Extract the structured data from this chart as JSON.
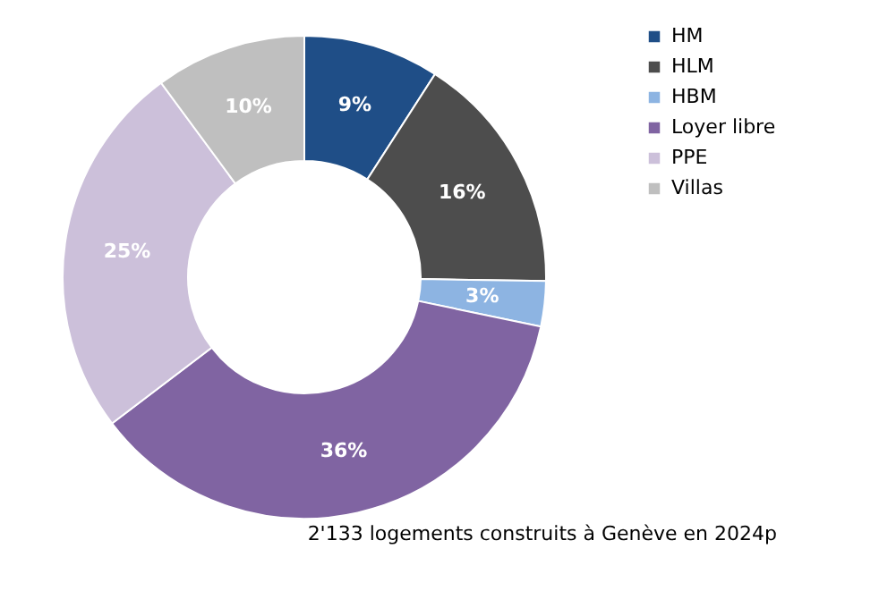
{
  "chart_data": {
    "type": "donut",
    "categories": [
      "HM",
      "HLM",
      "HBM",
      "Loyer libre",
      "PPE",
      "Villas"
    ],
    "values": [
      9,
      16,
      3,
      36,
      25,
      10
    ],
    "value_labels": [
      "9%",
      "16%",
      "3%",
      "36%",
      "25%",
      "10%"
    ],
    "colors": [
      "#1f4e87",
      "#4d4d4d",
      "#8db4e2",
      "#8064a2",
      "#ccc0da",
      "#bfbfbf"
    ],
    "legend": "right",
    "annotations": [
      "2'133  logements construits à Genève en 2024p"
    ]
  }
}
